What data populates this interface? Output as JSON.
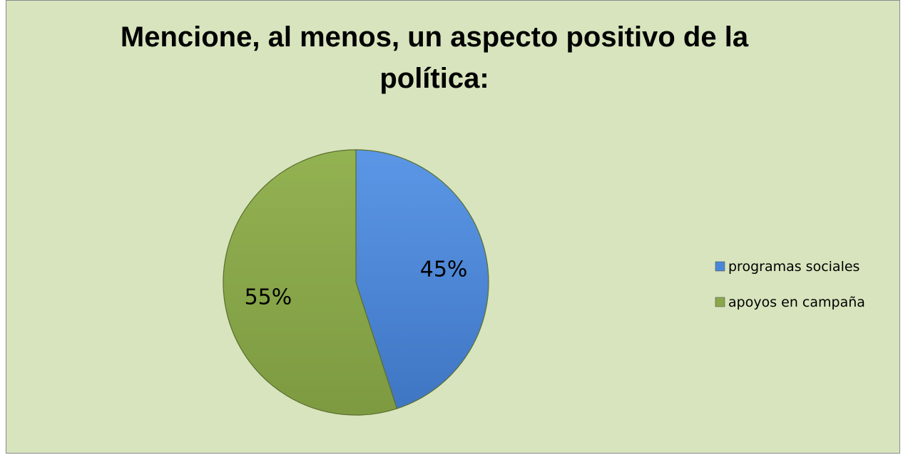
{
  "chart_data": {
    "type": "pie",
    "title": "Mencione, al menos, un aspecto positivo de la política:",
    "categories": [
      "programas sociales",
      "apoyos en campaña"
    ],
    "values": [
      45,
      55
    ],
    "data_labels": [
      "45%",
      "55%"
    ],
    "colors": [
      "#4a86d8",
      "#8aa84a"
    ],
    "legend_position": "right",
    "start_angle_deg": 0,
    "direction": "clockwise"
  },
  "background_color": "#d7e4bd"
}
